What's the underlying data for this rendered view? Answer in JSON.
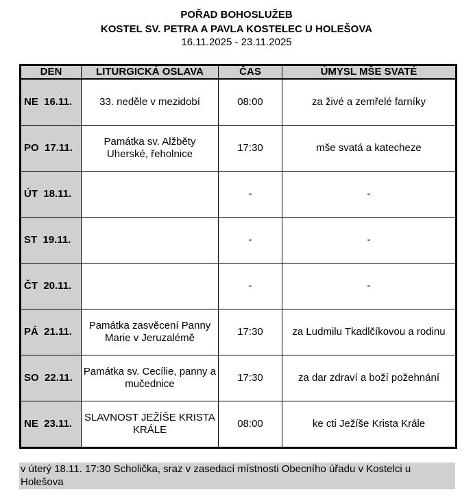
{
  "header": {
    "title": "POŘAD BOHOSLUŽEB",
    "subtitle": "KOSTEL SV. PETRA A PAVLA KOSTELEC U HOLEŠOVA",
    "dates": "16.11.2025 - 23.11.2025"
  },
  "table": {
    "columns": [
      "DEN",
      "LITURGICKÁ OSLAVA",
      "ČAS",
      "ÚMYSL MŠE SVATÉ"
    ],
    "rows": [
      {
        "den": "NE  16.11.",
        "oslava": "33. neděle v mezidobí",
        "cas": "08:00",
        "umysl": "za živé a zemřelé farníky"
      },
      {
        "den": "PO  17.11.",
        "oslava": "Památka sv. Alžběty Uherské, řeholnice",
        "cas": "17:30",
        "umysl": "mše svatá a katecheze"
      },
      {
        "den": "ÚT  18.11.",
        "oslava": "",
        "cas": "-",
        "umysl": "-"
      },
      {
        "den": "ST  19.11.",
        "oslava": "",
        "cas": "-",
        "umysl": "-"
      },
      {
        "den": "ČT  20.11.",
        "oslava": "",
        "cas": "-",
        "umysl": "-"
      },
      {
        "den": "PÁ  21.11.",
        "oslava": "Památka zasvěcení Panny Marie v Jeruzalémě",
        "cas": "17:30",
        "umysl": "za Ludmilu Tkadlčíkovou a rodinu"
      },
      {
        "den": "SO  22.11.",
        "oslava": "Památka sv. Cecílie, panny a mučednice",
        "cas": "17:30",
        "umysl": "za dar zdraví a boží požehnání"
      },
      {
        "den": "NE  23.11.",
        "oslava": "SLAVNOST JEŽÍŠE KRISTA KRÁLE",
        "cas": "08:00",
        "umysl": "ke cti Ježíše Krista Krále"
      }
    ]
  },
  "note": "v úterý 18.11. 17:30 Scholička, sraz v zasedací místnosti Obecního úřadu v Kostelci u Holešova"
}
